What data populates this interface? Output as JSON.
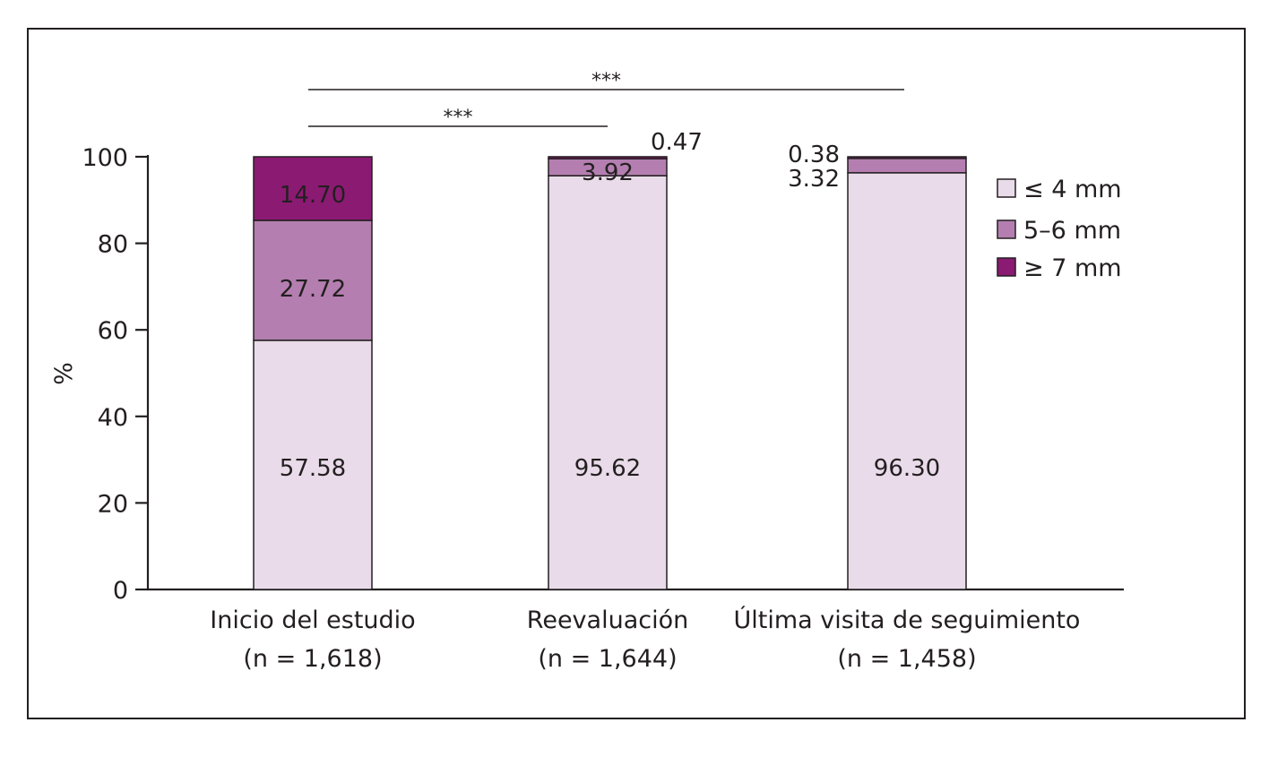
{
  "chart_data": {
    "type": "bar",
    "stacked": true,
    "ylabel": "%",
    "ylim": [
      0,
      100
    ],
    "yticks": [
      0,
      20,
      40,
      60,
      80,
      100
    ],
    "categories": [
      {
        "line1": "Inicio del estudio",
        "line2": "(n = 1,618)"
      },
      {
        "line1": "Reevaluación",
        "line2": "(n = 1,644)"
      },
      {
        "line1": "Última visita de seguimiento",
        "line2": "(n = 1,458)"
      }
    ],
    "series": [
      {
        "name": "≤ 4 mm",
        "color": "#e9dbe9",
        "values": [
          57.58,
          95.62,
          96.3
        ],
        "labels": [
          "57.58",
          "95.62",
          "96.30"
        ]
      },
      {
        "name": "5–6 mm",
        "color": "#b47fb0",
        "values": [
          27.72,
          3.92,
          3.32
        ],
        "labels": [
          "27.72",
          "3.92",
          "3.32"
        ]
      },
      {
        "name": "≥ 7 mm",
        "color": "#8b1a72",
        "values": [
          14.7,
          0.47,
          0.38
        ],
        "labels": [
          "14.70",
          "0.47",
          "0.38"
        ]
      }
    ],
    "legend_position": "right",
    "significance": [
      {
        "from": 0,
        "to": 2,
        "label": "***"
      },
      {
        "from": 0,
        "to": 1,
        "label": "***"
      }
    ]
  }
}
